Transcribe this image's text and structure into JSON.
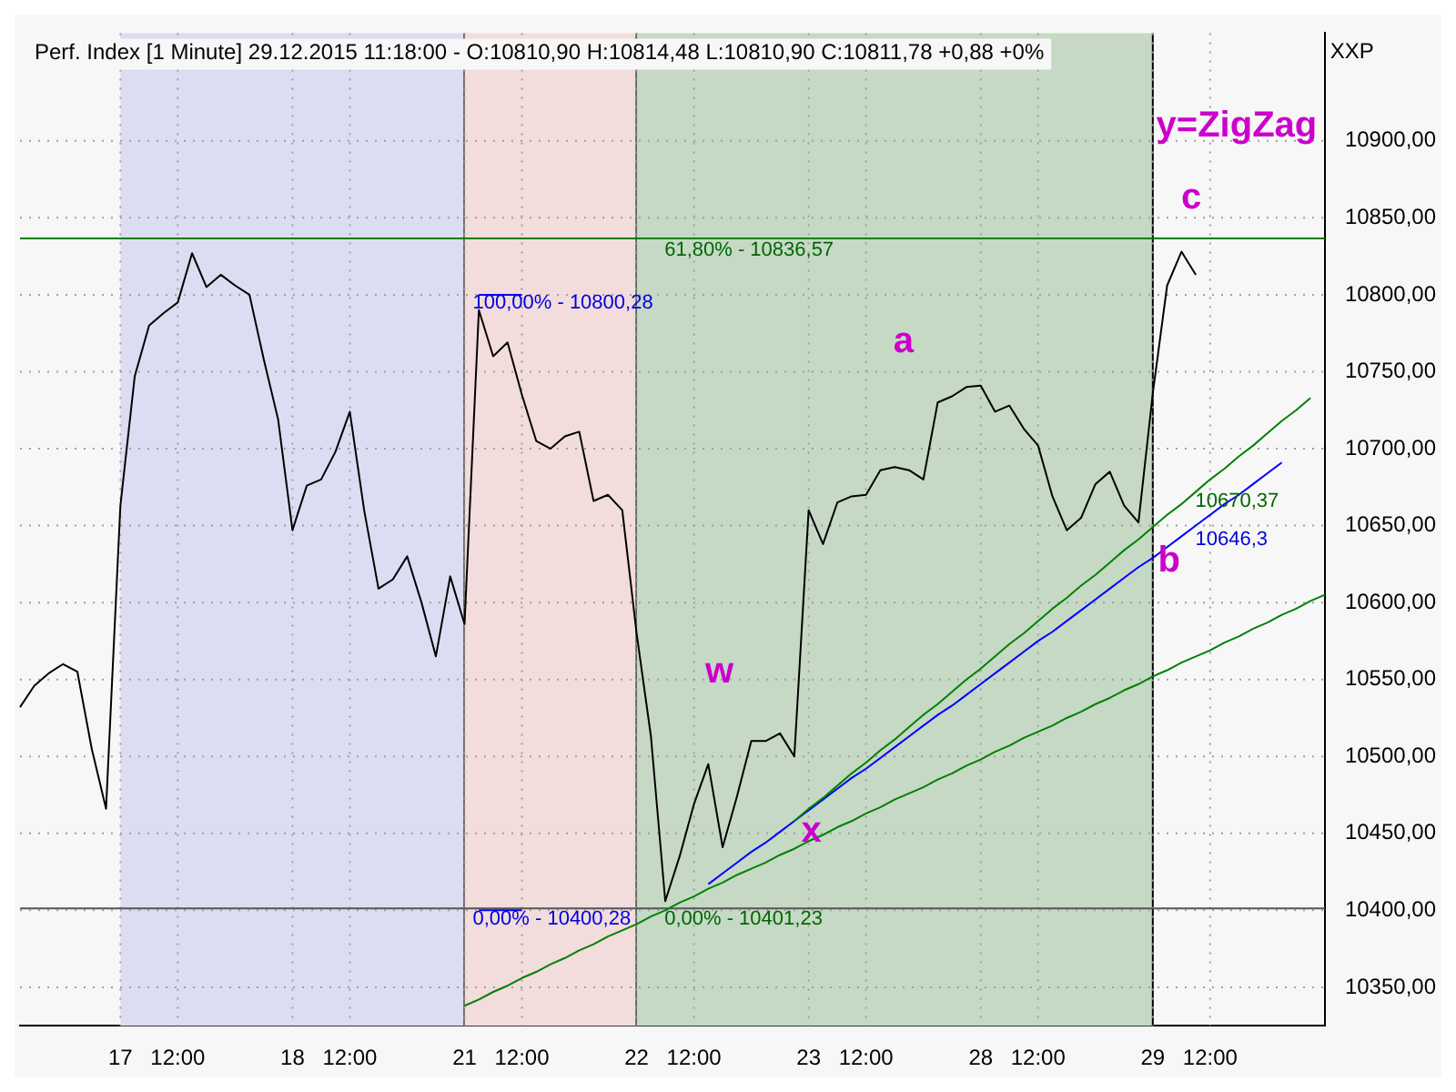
{
  "chart_data": {
    "type": "line",
    "title": "Perf. Index [1 Minute] 29.12.2015 11:18:00 - O:10810,90 H:10814,48 L:10810,90 C:10811,78 +0,88 +0%",
    "categories": [
      null,
      null,
      null,
      null,
      null,
      null,
      null,
      "17",
      null,
      null,
      null,
      "12:00",
      null,
      null,
      null,
      null,
      null,
      null,
      null,
      "18",
      null,
      null,
      null,
      "12:00",
      null,
      null,
      null,
      null,
      null,
      null,
      null,
      "21",
      null,
      null,
      null,
      "12:00",
      null,
      null,
      null,
      null,
      null,
      null,
      null,
      "22",
      null,
      null,
      null,
      "12:00",
      null,
      null,
      null,
      null,
      null,
      null,
      null,
      "23",
      null,
      null,
      null,
      "12:00",
      null,
      null,
      null,
      null,
      null,
      null,
      null,
      "28",
      null,
      null,
      null,
      "12:00",
      null,
      null,
      null,
      null,
      null,
      null,
      null,
      "29",
      null,
      null,
      null,
      "12:00",
      null,
      null,
      null,
      null,
      null,
      null,
      null,
      null
    ],
    "ylim": [
      10325,
      10970
    ],
    "yticks": [
      {
        "value": 10350,
        "label": "10350,00"
      },
      {
        "value": 10400,
        "label": "10400,00"
      },
      {
        "value": 10450,
        "label": "10450,00"
      },
      {
        "value": 10500,
        "label": "10500,00"
      },
      {
        "value": 10550,
        "label": "10550,00"
      },
      {
        "value": 10600,
        "label": "10600,00"
      },
      {
        "value": 10650,
        "label": "10650,00"
      },
      {
        "value": 10700,
        "label": "10700,00"
      },
      {
        "value": 10750,
        "label": "10750,00"
      },
      {
        "value": 10800,
        "label": "10800,00"
      },
      {
        "value": 10850,
        "label": "10850,00"
      },
      {
        "value": 10900,
        "label": "10900,00"
      }
    ],
    "grid": true,
    "legend": false,
    "marker": "none",
    "line_style": "solid",
    "bands": [
      {
        "axis": "x",
        "from": "17",
        "to": "21",
        "color": "#dcdcf2"
      },
      {
        "axis": "x",
        "from": "21",
        "to": "22",
        "color": "#f2dcdc"
      },
      {
        "axis": "x",
        "from": "22",
        "to": "29",
        "color": "#c5d9c5"
      }
    ],
    "ref_lines": [
      {
        "axis": "y",
        "value": 10836.57,
        "color": "#008000"
      },
      {
        "axis": "y",
        "value": 10401.23,
        "color": "#555555"
      }
    ],
    "series": [
      {
        "color": "#000000",
        "values": [
          10532,
          10546,
          10554,
          10560,
          10555,
          10505,
          10466,
          10663,
          10747,
          10780,
          10788,
          10795,
          10827,
          10805,
          10813,
          10806,
          10800,
          10758,
          10719,
          10647,
          10676,
          10680,
          10698,
          10724,
          10660,
          10609,
          10615,
          10630,
          10600,
          10565,
          10617,
          10586,
          10790,
          10760,
          10769,
          10735,
          10705,
          10700,
          10708,
          10711,
          10666,
          10670,
          10660,
          10580,
          10513,
          10406,
          10435,
          10469,
          10495,
          10441,
          10474,
          10510,
          10510,
          10515,
          10500,
          10660,
          10638,
          10665,
          10669,
          10670,
          10686,
          10688,
          10686,
          10680,
          10730,
          10734,
          10740,
          10741,
          10724,
          10728,
          10713,
          10702,
          10669,
          10647,
          10655,
          10677,
          10685,
          10663,
          10652,
          10736,
          10806,
          10828,
          10813,
          null,
          null,
          null,
          null,
          null,
          null,
          null,
          null,
          null
        ]
      },
      {
        "type": "line",
        "color": "#008000",
        "values": [
          null,
          null,
          null,
          null,
          null,
          null,
          null,
          null,
          null,
          null,
          null,
          null,
          null,
          null,
          null,
          null,
          null,
          null,
          null,
          null,
          null,
          null,
          null,
          null,
          null,
          null,
          null,
          null,
          null,
          null,
          null,
          10338,
          10342,
          10347,
          10351,
          10356,
          10360,
          10365,
          10369,
          10374,
          10378,
          10383,
          10387,
          10391,
          10396,
          10400,
          10405,
          10409,
          10414,
          10418,
          10423,
          10427,
          10431,
          10436,
          10440,
          10445,
          10449,
          10454,
          10458,
          10463,
          10467,
          10472,
          10476,
          10480,
          10485,
          10489,
          10494,
          10498,
          10503,
          10507,
          10512,
          10516,
          10520,
          10525,
          10529,
          10534,
          10538,
          10543,
          10547,
          10552,
          10556,
          10561,
          10565,
          10569,
          10574,
          10578,
          10583,
          10587,
          10592,
          10596,
          10601,
          10605
        ]
      },
      {
        "type": "line",
        "color": "#008000",
        "values": [
          null,
          null,
          null,
          null,
          null,
          null,
          null,
          null,
          null,
          null,
          null,
          null,
          null,
          null,
          null,
          null,
          null,
          null,
          null,
          null,
          null,
          null,
          null,
          null,
          null,
          null,
          null,
          null,
          null,
          null,
          null,
          null,
          null,
          null,
          null,
          null,
          null,
          null,
          null,
          null,
          null,
          null,
          null,
          null,
          null,
          null,
          null,
          null,
          null,
          null,
          null,
          null,
          null,
          null,
          10458,
          10466,
          10473,
          10481,
          10489,
          10496,
          10504,
          10511,
          10519,
          10527,
          10534,
          10542,
          10550,
          10557,
          10565,
          10573,
          10580,
          10588,
          10596,
          10603,
          10611,
          10618,
          10626,
          10634,
          10641,
          10649,
          10657,
          10664,
          10672,
          10680,
          10687,
          10695,
          10702,
          10710,
          10718,
          10725,
          10733,
          null
        ]
      },
      {
        "type": "line",
        "color": "#0000ff",
        "values": [
          null,
          null,
          null,
          null,
          null,
          null,
          null,
          null,
          null,
          null,
          null,
          null,
          null,
          null,
          null,
          null,
          null,
          null,
          null,
          null,
          null,
          null,
          null,
          null,
          null,
          null,
          null,
          null,
          null,
          null,
          null,
          null,
          null,
          null,
          null,
          null,
          null,
          null,
          null,
          null,
          null,
          null,
          null,
          null,
          null,
          null,
          null,
          null,
          10417,
          10424,
          10431,
          10438,
          10444,
          10451,
          10458,
          10465,
          10472,
          10479,
          10486,
          10492,
          10499,
          10506,
          10513,
          10520,
          10527,
          10533,
          10540,
          10547,
          10554,
          10561,
          10568,
          10575,
          10581,
          10588,
          10595,
          10602,
          10609,
          10616,
          10623,
          10629,
          10636,
          10643,
          10650,
          10657,
          10664,
          10670,
          10677,
          10684,
          10691,
          null,
          null,
          null
        ]
      },
      {
        "type": "line",
        "color": "#0000ff",
        "values": [
          null,
          null,
          null,
          null,
          null,
          null,
          null,
          null,
          null,
          null,
          null,
          null,
          null,
          null,
          null,
          null,
          null,
          null,
          null,
          null,
          null,
          null,
          null,
          null,
          null,
          null,
          null,
          null,
          null,
          null,
          null,
          null,
          10800,
          10800,
          10800,
          10800,
          null,
          null,
          null,
          null,
          null,
          null,
          null,
          null,
          null,
          null,
          null,
          null,
          null,
          null,
          null,
          null,
          null,
          null,
          null,
          null,
          null,
          null,
          null,
          null,
          null,
          null,
          null,
          null,
          null,
          null,
          null,
          null,
          null,
          null,
          null,
          null,
          null,
          null,
          null,
          null,
          null,
          null,
          null,
          null,
          null,
          null,
          null,
          null,
          null,
          null,
          null,
          null,
          null,
          null,
          null,
          null
        ]
      },
      {
        "type": "line",
        "color": "#0000ff",
        "values": [
          null,
          null,
          null,
          null,
          null,
          null,
          null,
          null,
          null,
          null,
          null,
          null,
          null,
          null,
          null,
          null,
          null,
          null,
          null,
          null,
          null,
          null,
          null,
          null,
          null,
          null,
          null,
          null,
          null,
          null,
          null,
          null,
          10400,
          10400,
          10400,
          10400,
          null,
          null,
          null,
          null,
          null,
          null,
          null,
          null,
          null,
          null,
          null,
          null,
          null,
          null,
          null,
          null,
          null,
          null,
          null,
          null,
          null,
          null,
          null,
          null,
          null,
          null,
          null,
          null,
          null,
          null,
          null,
          null,
          null,
          null,
          null,
          null,
          null,
          null,
          null,
          null,
          null,
          null,
          null,
          null,
          null,
          null,
          null,
          null,
          null,
          null,
          null,
          null,
          null,
          null,
          null,
          null
        ]
      }
    ],
    "annotations": [
      "XXP",
      "y=ZigZag",
      "a",
      "b",
      "c",
      "w",
      "x",
      "100,00% - 10800,28",
      "0,00% - 10400,28",
      "61,80% - 10836,57",
      "0,00% - 10401,23",
      "10670,37",
      "10646,3"
    ]
  }
}
